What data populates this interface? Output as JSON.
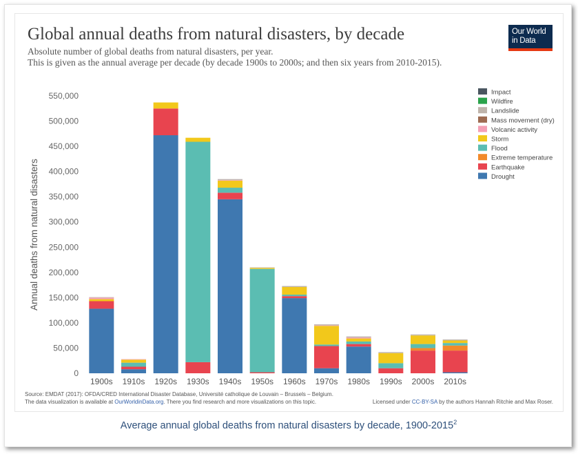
{
  "chart_data": {
    "type": "bar",
    "stacked": true,
    "title": "Global annual deaths from natural disasters, by decade",
    "subtitle": [
      "Absolute number of global deaths from natural disasters, per year.",
      "This is given as the annual average per decade (by decade 1900s to 2000s; and then six years from 2010-2015)."
    ],
    "ylabel": "Annual deaths from natural disasters",
    "xlabel": "",
    "ylim": [
      0,
      550000
    ],
    "yticks": [
      {
        "value": 0,
        "label": "0"
      },
      {
        "value": 50000,
        "label": "50,000"
      },
      {
        "value": 100000,
        "label": "100,000"
      },
      {
        "value": 150000,
        "label": "150,000"
      },
      {
        "value": 200000,
        "label": "200,000"
      },
      {
        "value": 250000,
        "label": "250,000"
      },
      {
        "value": 300000,
        "label": "300,000"
      },
      {
        "value": 350000,
        "label": "350,000"
      },
      {
        "value": 400000,
        "label": "400,000"
      },
      {
        "value": 450000,
        "label": "450,000"
      },
      {
        "value": 500000,
        "label": "500,000"
      },
      {
        "value": 550000,
        "label": "550,000"
      }
    ],
    "grid": false,
    "legend_position": "top-right",
    "categories": [
      "1900s",
      "1910s",
      "1920s",
      "1930s",
      "1940s",
      "1950s",
      "1960s",
      "1970s",
      "1980s",
      "1990s",
      "2000s",
      "2010s"
    ],
    "series": [
      {
        "name": "Drought",
        "color": "#3f78b0",
        "values": [
          128000,
          8000,
          472000,
          0,
          345000,
          0,
          149000,
          10000,
          53000,
          0,
          0,
          2000
        ]
      },
      {
        "name": "Earthquake",
        "color": "#e8444f",
        "values": [
          15000,
          5000,
          53000,
          22000,
          13000,
          2000,
          4000,
          44000,
          5000,
          10000,
          45000,
          43000
        ]
      },
      {
        "name": "Extreme temperature",
        "color": "#f28a2b",
        "values": [
          0,
          0,
          0,
          0,
          0,
          0,
          0,
          0,
          0,
          0,
          5000,
          10000
        ]
      },
      {
        "name": "Flood",
        "color": "#5bbdb2",
        "values": [
          0,
          8000,
          0,
          437000,
          10000,
          205000,
          3000,
          3000,
          5000,
          10000,
          8000,
          5000
        ]
      },
      {
        "name": "Storm",
        "color": "#f2c81b",
        "values": [
          4000,
          6000,
          12000,
          8000,
          14000,
          2000,
          15000,
          37000,
          6000,
          20000,
          17000,
          5000
        ]
      },
      {
        "name": "Volcanic activity",
        "color": "#f5a0b5",
        "values": [
          3000,
          1000,
          0,
          0,
          1000,
          0,
          0,
          1000,
          2000,
          0,
          0,
          0
        ]
      },
      {
        "name": "Mass movement (dry)",
        "color": "#9e6b51",
        "values": [
          0,
          0,
          0,
          0,
          0,
          0,
          0,
          0,
          0,
          0,
          0,
          0
        ]
      },
      {
        "name": "Landslide",
        "color": "#bfb4ab",
        "values": [
          1000,
          0,
          0,
          0,
          2000,
          1000,
          2000,
          2000,
          2000,
          2000,
          2000,
          2000
        ]
      },
      {
        "name": "Wildfire",
        "color": "#2aa34b",
        "values": [
          0,
          0,
          0,
          0,
          0,
          0,
          0,
          0,
          0,
          0,
          0,
          0
        ]
      },
      {
        "name": "Impact",
        "color": "#4a5660",
        "values": [
          0,
          0,
          0,
          0,
          0,
          0,
          0,
          0,
          0,
          0,
          0,
          0
        ]
      }
    ],
    "legend_order": [
      "Impact",
      "Wildfire",
      "Landslide",
      "Mass movement (dry)",
      "Volcanic activity",
      "Storm",
      "Flood",
      "Extreme temperature",
      "Earthquake",
      "Drought"
    ]
  },
  "logo": {
    "line1": "Our World",
    "line2": "in Data",
    "bg_color": "#0d2b4f",
    "accent_color": "#e63912"
  },
  "footer": {
    "source_text": "Source: EMDAT (2017): OFDA/CRED International Disaster Database, Université catholique de Louvain – Brussels – Belgium.",
    "availability_prefix": "The data visualization is available at ",
    "availability_link": "OurWorldinData.org",
    "availability_suffix": ". There you find research and more visualizations on this topic.",
    "license_prefix": "Licensed under ",
    "license_link": "CC-BY-SA",
    "license_suffix": " by the authors Hannah Ritchie and Max Roser."
  },
  "caption": {
    "text": "Average annual global deaths from natural disasters by decade, 1900-2015",
    "footnote": "2"
  }
}
